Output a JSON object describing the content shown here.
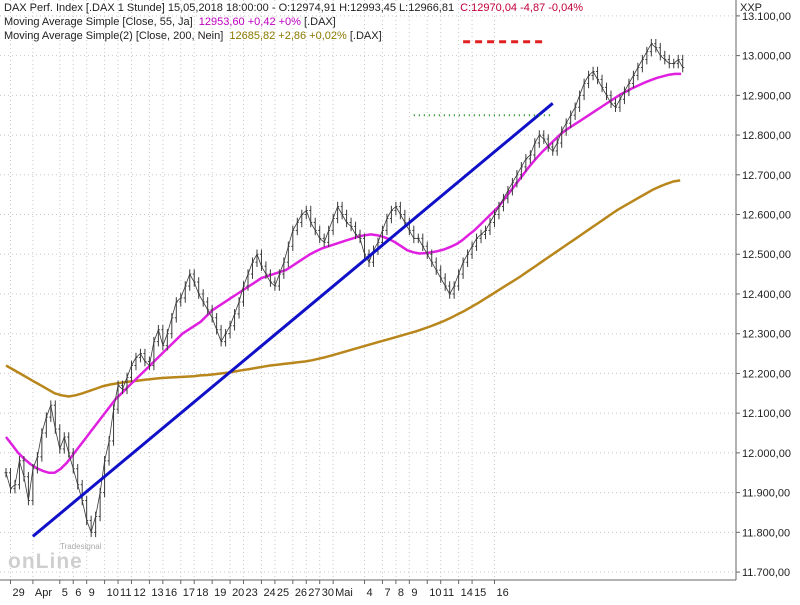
{
  "legend": {
    "line1": {
      "prefix": "DAX Perf. Index [.DAX  1 Stunde] 15,05,2018 18:00:00 - O:12974,91 H:12993,45 L:12966,81",
      "close": "C:12970,04 -4,87 -0,04%"
    },
    "line2": {
      "prefix": "Moving Average Simple [Close, 55, Ja]",
      "value": "12953,60 +0,42 +0%",
      "suffix": "[.DAX]"
    },
    "line3": {
      "prefix": "Moving Average Simple(2) [Close, 200, Nein]",
      "value": "12685,82 +2,86 +0,02%",
      "suffix": "[.DAX]"
    }
  },
  "axis_corner_label": "XXP",
  "watermark": {
    "brand": "onLine",
    "sub": "Tradesignal"
  },
  "colors": {
    "price": "#3a3a3a",
    "ma55": "#e020e0",
    "ma200": "#b8861b",
    "trendline": "#1010c8",
    "resistance": "#e02020",
    "support": "#1a8a1a",
    "close_text": "#c0003a",
    "ma55_text": "#c000c0",
    "ma200_text": "#8a7a00"
  },
  "chart_data": {
    "type": "line",
    "ylim": [
      11680,
      13140
    ],
    "yticks": [
      11700,
      11800,
      11900,
      12000,
      12100,
      12200,
      12300,
      12400,
      12500,
      12600,
      12700,
      12800,
      12900,
      13000,
      13100
    ],
    "ytick_labels": [
      "11.700,00",
      "11.800,00",
      "11.900,00",
      "12.000,00",
      "12.100,00",
      "12.200,00",
      "12.300,00",
      "12.400,00",
      "12.500,00",
      "12.600,00",
      "12.700,00",
      "12.800,00",
      "12.900,00",
      "13.000,00",
      "13.100,00"
    ],
    "xticks": [
      {
        "label": "29",
        "i": 1
      },
      {
        "label": "Apr",
        "i": 6
      },
      {
        "label": "5",
        "i": 12
      },
      {
        "label": "6",
        "i": 15
      },
      {
        "label": "9",
        "i": 18
      },
      {
        "label": "10",
        "i": 22
      },
      {
        "label": "11",
        "i": 25
      },
      {
        "label": "12",
        "i": 28
      },
      {
        "label": "13",
        "i": 32
      },
      {
        "label": "16",
        "i": 35
      },
      {
        "label": "17",
        "i": 39
      },
      {
        "label": "18",
        "i": 42
      },
      {
        "label": "19",
        "i": 46
      },
      {
        "label": "20",
        "i": 50
      },
      {
        "label": "23",
        "i": 53
      },
      {
        "label": "24",
        "i": 57
      },
      {
        "label": "25",
        "i": 60
      },
      {
        "label": "26",
        "i": 64
      },
      {
        "label": "27",
        "i": 67
      },
      {
        "label": "30",
        "i": 70
      },
      {
        "label": "Mai",
        "i": 73
      },
      {
        "label": "4",
        "i": 80
      },
      {
        "label": "7",
        "i": 84
      },
      {
        "label": "8",
        "i": 87
      },
      {
        "label": "9",
        "i": 90
      },
      {
        "label": "10",
        "i": 94
      },
      {
        "label": "11",
        "i": 97
      },
      {
        "label": "14",
        "i": 101
      },
      {
        "label": "15",
        "i": 104
      },
      {
        "label": "16",
        "i": 109
      }
    ],
    "series": [
      {
        "key": "price",
        "values": [
          11950,
          11910,
          11920,
          11980,
          11940,
          11880,
          11960,
          11990,
          12050,
          12090,
          12120,
          12060,
          12010,
          12040,
          12000,
          11960,
          11920,
          11880,
          11830,
          11800,
          11840,
          11900,
          11980,
          12030,
          12110,
          12170,
          12160,
          12190,
          12220,
          12240,
          12250,
          12230,
          12220,
          12280,
          12310,
          12270,
          12300,
          12340,
          12380,
          12390,
          12420,
          12450,
          12430,
          12400,
          12380,
          12360,
          12340,
          12310,
          12280,
          12300,
          12320,
          12350,
          12380,
          12420,
          12450,
          12480,
          12500,
          12470,
          12450,
          12430,
          12420,
          12450,
          12480,
          12520,
          12560,
          12580,
          12600,
          12610,
          12580,
          12560,
          12540,
          12530,
          12560,
          12590,
          12620,
          12600,
          12580,
          12570,
          12550,
          12540,
          12500,
          12480,
          12510,
          12530,
          12560,
          12590,
          12610,
          12620,
          12600,
          12580,
          12560,
          12540,
          12540,
          12520,
          12500,
          12480,
          12460,
          12440,
          12420,
          12400,
          12420,
          12450,
          12480,
          12500,
          12520,
          12540,
          12550,
          12560,
          12580,
          12600,
          12620,
          12640,
          12660,
          12680,
          12700,
          12720,
          12740,
          12750,
          12780,
          12800,
          12790,
          12770,
          12760,
          12780,
          12810,
          12830,
          12850,
          12870,
          12900,
          12930,
          12950,
          12960,
          12940,
          12920,
          12900,
          12880,
          12870,
          12890,
          12910,
          12930,
          12950,
          12970,
          12990,
          13010,
          13030,
          13020,
          13000,
          12990,
          12980,
          12980,
          12990,
          12970
        ]
      },
      {
        "key": "ma55",
        "values": [
          12040,
          12020,
          12000,
          11985,
          11972,
          11962,
          11955,
          11950,
          11950,
          11960,
          11975,
          11995,
          12015,
          12035,
          12055,
          12075,
          12095,
          12115,
          12135,
          12150,
          12165,
          12180,
          12195,
          12210,
          12225,
          12240,
          12255,
          12270,
          12285,
          12300,
          12310,
          12320,
          12330,
          12345,
          12360,
          12370,
          12380,
          12390,
          12400,
          12410,
          12420,
          12430,
          12440,
          12445,
          12450,
          12455,
          12460,
          12470,
          12480,
          12490,
          12500,
          12508,
          12515,
          12520,
          12525,
          12530,
          12535,
          12540,
          12545,
          12548,
          12550,
          12548,
          12544,
          12538,
          12530,
          12520,
          12510,
          12505,
          12502,
          12503,
          12505,
          12508,
          12512,
          12518,
          12525,
          12535,
          12548,
          12560,
          12575,
          12590,
          12605,
          12620,
          12640,
          12660,
          12680,
          12700,
          12720,
          12738,
          12755,
          12770,
          12785,
          12800,
          12812,
          12822,
          12832,
          12842,
          12852,
          12862,
          12872,
          12882,
          12892,
          12902,
          12910,
          12918,
          12925,
          12932,
          12938,
          12944,
          12948,
          12952,
          12954,
          12954
        ]
      },
      {
        "key": "ma200",
        "values": [
          12220,
          12210,
          12200,
          12190,
          12180,
          12170,
          12160,
          12150,
          12145,
          12142,
          12145,
          12150,
          12156,
          12162,
          12168,
          12172,
          12175,
          12178,
          12180,
          12182,
          12184,
          12186,
          12188,
          12189,
          12190,
          12191,
          12192,
          12193,
          12195,
          12196,
          12198,
          12200,
          12202,
          12205,
          12208,
          12211,
          12214,
          12217,
          12220,
          12222,
          12224,
          12226,
          12228,
          12230,
          12233,
          12237,
          12241,
          12246,
          12251,
          12256,
          12261,
          12266,
          12271,
          12276,
          12281,
          12286,
          12291,
          12296,
          12301,
          12306,
          12312,
          12318,
          12325,
          12332,
          12340,
          12349,
          12358,
          12368,
          12378,
          12389,
          12400,
          12411,
          12422,
          12433,
          12444,
          12456,
          12468,
          12480,
          12492,
          12504,
          12516,
          12528,
          12540,
          12552,
          12564,
          12576,
          12588,
          12600,
          12612,
          12622,
          12632,
          12642,
          12652,
          12662,
          12670,
          12677,
          12683,
          12686
        ]
      }
    ],
    "annotations": {
      "trendline": {
        "from": [
          6,
          11790
        ],
        "to": [
          122,
          12880
        ]
      },
      "resistance": {
        "from": [
          102,
          13035
        ],
        "to": [
          120,
          13035
        ]
      },
      "support": {
        "from": [
          91,
          12850
        ],
        "to": [
          122,
          12850
        ]
      }
    },
    "grid": true
  }
}
